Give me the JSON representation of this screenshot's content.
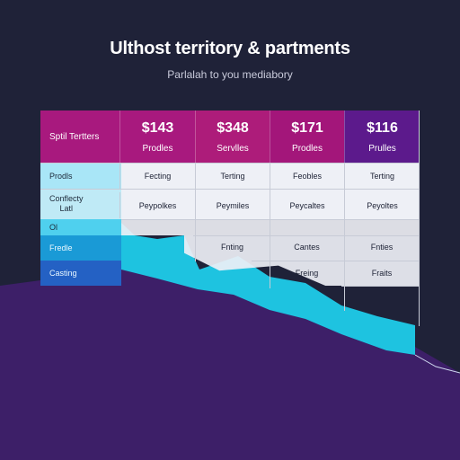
{
  "title": "Ulthost territory & partments",
  "subtitle": "Parlalah to you mediabory",
  "table": {
    "corner_label": "Sptil Tertters",
    "columns": [
      {
        "price": "$143",
        "label": "Prodles",
        "color": "#a8197e"
      },
      {
        "price": "$348",
        "label": "Servlles",
        "color": "#b01c79"
      },
      {
        "price": "$171",
        "label": "Prodles",
        "color": "#a3167a"
      },
      {
        "price": "$116",
        "label": "Prulles",
        "color": "#5c1a8c"
      }
    ],
    "rows": [
      {
        "label": "Prodls",
        "cells": [
          "Fecting",
          "Terting",
          "Feobles",
          "Terting"
        ]
      },
      {
        "label": "Conflecty\nLatl",
        "cells": [
          "Peypolkes",
          "Peymiles",
          "Peycaltes",
          "Peyoltes"
        ]
      },
      {
        "label": "Ol",
        "cells": [
          "",
          "",
          "",
          ""
        ]
      },
      {
        "label": "Fredle",
        "cells": [
          "",
          "Fnting",
          "Cantes",
          "Fnties"
        ]
      },
      {
        "label": "Casting",
        "cells": [
          "",
          "Freing",
          "",
          "Fraits"
        ]
      }
    ]
  },
  "colors": {
    "background": "#1f2238",
    "magenta": "#a8197e",
    "purple": "#5c1a8c",
    "cyan": "#1ec3e0",
    "deep_purple": "#3b1f66"
  }
}
